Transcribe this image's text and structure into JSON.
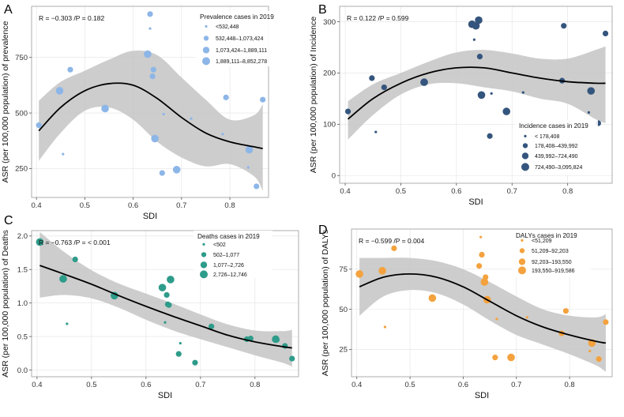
{
  "chart_data": [
    {
      "type": "scatter",
      "panel_label": "A",
      "xlabel": "SDI",
      "ylabel": "ASR (per 100,000 population) of prevalence",
      "xlim": [
        0.39,
        0.88
      ],
      "ylim": [
        120,
        980
      ],
      "xticks": [
        0.4,
        0.5,
        0.6,
        0.7,
        0.8
      ],
      "yticks": [
        250,
        500,
        750
      ],
      "x_tick_labels": [
        "0.4",
        "0.5",
        "0.6",
        "0.7",
        "0.8"
      ],
      "y_tick_labels": [
        "250",
        "500",
        "750"
      ],
      "color": "#8DB6E8",
      "stat_text": "R = −0.303 /P = 0.182",
      "legend_title": "Prevalence cases in 2019",
      "legend_entries": [
        "<532,448",
        "532,448–1,073,424",
        "1,073,424–1,889,111",
        "1,889,111–8,852,278"
      ],
      "points": [
        {
          "x": 0.405,
          "y": 445,
          "size": 2
        },
        {
          "x": 0.448,
          "y": 600,
          "size": 3
        },
        {
          "x": 0.455,
          "y": 315,
          "size": 1
        },
        {
          "x": 0.47,
          "y": 695,
          "size": 2
        },
        {
          "x": 0.542,
          "y": 520,
          "size": 3
        },
        {
          "x": 0.63,
          "y": 765,
          "size": 3
        },
        {
          "x": 0.635,
          "y": 945,
          "size": 2
        },
        {
          "x": 0.635,
          "y": 880,
          "size": 1
        },
        {
          "x": 0.64,
          "y": 665,
          "size": 2
        },
        {
          "x": 0.642,
          "y": 695,
          "size": 2
        },
        {
          "x": 0.645,
          "y": 385,
          "size": 3
        },
        {
          "x": 0.66,
          "y": 230,
          "size": 2
        },
        {
          "x": 0.663,
          "y": 495,
          "size": 1
        },
        {
          "x": 0.69,
          "y": 245,
          "size": 3
        },
        {
          "x": 0.72,
          "y": 475,
          "size": 1
        },
        {
          "x": 0.785,
          "y": 405,
          "size": 1
        },
        {
          "x": 0.792,
          "y": 570,
          "size": 2
        },
        {
          "x": 0.838,
          "y": 255,
          "size": 1
        },
        {
          "x": 0.84,
          "y": 335,
          "size": 3
        },
        {
          "x": 0.855,
          "y": 170,
          "size": 2
        },
        {
          "x": 0.868,
          "y": 560,
          "size": 2
        }
      ],
      "fit": {
        "x": [
          0.405,
          0.45,
          0.5,
          0.55,
          0.6,
          0.65,
          0.7,
          0.75,
          0.8,
          0.85,
          0.868
        ],
        "y": [
          420,
          525,
          600,
          632,
          625,
          565,
          480,
          410,
          370,
          348,
          340
        ]
      },
      "band_upper": [
        555,
        640,
        690,
        740,
        780,
        760,
        660,
        560,
        470,
        490,
        540
      ],
      "band_lower": [
        285,
        410,
        510,
        525,
        470,
        370,
        300,
        260,
        270,
        215,
        150
      ]
    },
    {
      "type": "scatter",
      "panel_label": "B",
      "xlabel": "SDI",
      "ylabel": "ASR (per 100,000 population) of Incidence",
      "xlim": [
        0.39,
        0.88
      ],
      "ylim": [
        -15,
        330
      ],
      "xticks": [
        0.4,
        0.5,
        0.6,
        0.7,
        0.8
      ],
      "yticks": [
        0,
        100,
        200,
        300
      ],
      "x_tick_labels": [
        "0.4",
        "0.5",
        "0.6",
        "0.7",
        "0.8"
      ],
      "y_tick_labels": [
        "0",
        "100",
        "200",
        "300"
      ],
      "color": "#34557D",
      "stat_text": "R = 0.122 /P = 0.599",
      "legend_title": "Incidence cases in 2019",
      "legend_entries": [
        "< 178,408",
        "178,408–439,992",
        "439,992–724,490",
        "724,490–3,095,824"
      ],
      "points": [
        {
          "x": 0.405,
          "y": 125,
          "size": 2
        },
        {
          "x": 0.448,
          "y": 190,
          "size": 2
        },
        {
          "x": 0.455,
          "y": 85,
          "size": 1
        },
        {
          "x": 0.47,
          "y": 172,
          "size": 2
        },
        {
          "x": 0.542,
          "y": 182,
          "size": 3
        },
        {
          "x": 0.628,
          "y": 295,
          "size": 3
        },
        {
          "x": 0.632,
          "y": 265,
          "size": 1
        },
        {
          "x": 0.635,
          "y": 292,
          "size": 3
        },
        {
          "x": 0.64,
          "y": 303,
          "size": 3
        },
        {
          "x": 0.642,
          "y": 232,
          "size": 2
        },
        {
          "x": 0.645,
          "y": 157,
          "size": 3
        },
        {
          "x": 0.66,
          "y": 77,
          "size": 2
        },
        {
          "x": 0.663,
          "y": 160,
          "size": 1
        },
        {
          "x": 0.69,
          "y": 125,
          "size": 3
        },
        {
          "x": 0.72,
          "y": 162,
          "size": 1
        },
        {
          "x": 0.79,
          "y": 185,
          "size": 2
        },
        {
          "x": 0.793,
          "y": 292,
          "size": 2
        },
        {
          "x": 0.838,
          "y": 123,
          "size": 1
        },
        {
          "x": 0.842,
          "y": 165,
          "size": 3
        },
        {
          "x": 0.855,
          "y": 102,
          "size": 2
        },
        {
          "x": 0.868,
          "y": 277,
          "size": 2
        }
      ],
      "fit": {
        "x": [
          0.405,
          0.45,
          0.5,
          0.55,
          0.6,
          0.65,
          0.7,
          0.75,
          0.8,
          0.85,
          0.868
        ],
        "y": [
          110,
          150,
          180,
          200,
          210,
          210,
          200,
          190,
          183,
          180,
          180
        ]
      },
      "band_upper": [
        145,
        178,
        200,
        222,
        240,
        245,
        238,
        228,
        228,
        245,
        252
      ],
      "band_lower": [
        70,
        118,
        158,
        178,
        180,
        172,
        164,
        150,
        140,
        110,
        102
      ]
    },
    {
      "type": "scatter",
      "panel_label": "C",
      "xlabel": "SDI",
      "ylabel": "ASR (per 100,000 population) of Deaths",
      "xlim": [
        0.39,
        0.88
      ],
      "ylim": [
        -0.1,
        2.08
      ],
      "xticks": [
        0.4,
        0.5,
        0.6,
        0.7,
        0.8
      ],
      "yticks": [
        0.0,
        0.5,
        1.0,
        1.5,
        2.0
      ],
      "x_tick_labels": [
        "0.4",
        "0.5",
        "0.6",
        "0.7",
        "0.8"
      ],
      "y_tick_labels": [
        "0.0",
        "0.5",
        "1.0",
        "1.5",
        "2.0"
      ],
      "color": "#2E9C8A",
      "stat_text": "R = −0.763 /P = < 0.001",
      "legend_title": "Deaths cases in 2019",
      "legend_entries": [
        "<502",
        "502–1,077",
        "1,077–2,726",
        "2,726–12,746"
      ],
      "points": [
        {
          "x": 0.405,
          "y": 1.91,
          "size": 3
        },
        {
          "x": 0.448,
          "y": 1.36,
          "size": 3
        },
        {
          "x": 0.455,
          "y": 0.69,
          "size": 1
        },
        {
          "x": 0.47,
          "y": 1.65,
          "size": 2
        },
        {
          "x": 0.542,
          "y": 1.11,
          "size": 3
        },
        {
          "x": 0.63,
          "y": 1.23,
          "size": 3
        },
        {
          "x": 0.635,
          "y": 0.71,
          "size": 1
        },
        {
          "x": 0.638,
          "y": 1.12,
          "size": 2
        },
        {
          "x": 0.64,
          "y": 0.98,
          "size": 2
        },
        {
          "x": 0.642,
          "y": 0.97,
          "size": 2
        },
        {
          "x": 0.645,
          "y": 1.35,
          "size": 3
        },
        {
          "x": 0.66,
          "y": 0.24,
          "size": 2
        },
        {
          "x": 0.663,
          "y": 0.4,
          "size": 1
        },
        {
          "x": 0.69,
          "y": 0.11,
          "size": 2
        },
        {
          "x": 0.72,
          "y": 0.65,
          "size": 2
        },
        {
          "x": 0.785,
          "y": 0.46,
          "size": 2
        },
        {
          "x": 0.792,
          "y": 0.47,
          "size": 2
        },
        {
          "x": 0.838,
          "y": 0.46,
          "size": 3
        },
        {
          "x": 0.84,
          "y": 0.45,
          "size": 2
        },
        {
          "x": 0.855,
          "y": 0.36,
          "size": 2
        },
        {
          "x": 0.868,
          "y": 0.17,
          "size": 2
        }
      ],
      "fit": {
        "x": [
          0.405,
          0.45,
          0.5,
          0.55,
          0.6,
          0.65,
          0.7,
          0.75,
          0.8,
          0.85,
          0.868
        ],
        "y": [
          1.56,
          1.43,
          1.28,
          1.11,
          0.95,
          0.8,
          0.66,
          0.52,
          0.42,
          0.35,
          0.33
        ]
      },
      "band_upper": [
        2.06,
        1.76,
        1.49,
        1.29,
        1.14,
        0.99,
        0.83,
        0.68,
        0.59,
        0.58,
        0.6
      ],
      "band_lower": [
        1.08,
        1.12,
        1.07,
        0.93,
        0.75,
        0.59,
        0.46,
        0.34,
        0.22,
        0.11,
        0.05
      ]
    },
    {
      "type": "scatter",
      "panel_label": "D",
      "xlabel": "SDI",
      "ylabel": "ASR (per 100,000 population) of DALYs",
      "xlim": [
        0.39,
        0.88
      ],
      "ylim": [
        8,
        100
      ],
      "xticks": [
        0.4,
        0.5,
        0.6,
        0.7,
        0.8
      ],
      "yticks": [
        25,
        50,
        75
      ],
      "x_tick_labels": [
        "0.4",
        "0.5",
        "0.6",
        "0.7",
        "0.8"
      ],
      "y_tick_labels": [
        "25",
        "50",
        "75"
      ],
      "color": "#F4A23E",
      "stat_text": "R = −0.599 /P = 0.004",
      "legend_title": "DALYs cases in 2019",
      "legend_entries": [
        "<51,209",
        "51,209–92,203",
        "92,203–193,550",
        "193,550–919,586"
      ],
      "points": [
        {
          "x": 0.405,
          "y": 72,
          "size": 3
        },
        {
          "x": 0.448,
          "y": 74,
          "size": 3
        },
        {
          "x": 0.453,
          "y": 39,
          "size": 1
        },
        {
          "x": 0.47,
          "y": 88,
          "size": 2
        },
        {
          "x": 0.542,
          "y": 57,
          "size": 3
        },
        {
          "x": 0.63,
          "y": 77,
          "size": 2
        },
        {
          "x": 0.633,
          "y": 95,
          "size": 1
        },
        {
          "x": 0.635,
          "y": 84,
          "size": 2
        },
        {
          "x": 0.64,
          "y": 67,
          "size": 3
        },
        {
          "x": 0.642,
          "y": 70,
          "size": 2
        },
        {
          "x": 0.645,
          "y": 56,
          "size": 3
        },
        {
          "x": 0.66,
          "y": 20,
          "size": 2
        },
        {
          "x": 0.663,
          "y": 44,
          "size": 1
        },
        {
          "x": 0.69,
          "y": 20,
          "size": 3
        },
        {
          "x": 0.72,
          "y": 45,
          "size": 1
        },
        {
          "x": 0.785,
          "y": 35,
          "size": 2
        },
        {
          "x": 0.793,
          "y": 49,
          "size": 2
        },
        {
          "x": 0.838,
          "y": 24,
          "size": 1
        },
        {
          "x": 0.842,
          "y": 29,
          "size": 3
        },
        {
          "x": 0.855,
          "y": 19,
          "size": 2
        },
        {
          "x": 0.868,
          "y": 42,
          "size": 2
        }
      ],
      "fit": {
        "x": [
          0.405,
          0.45,
          0.5,
          0.55,
          0.6,
          0.65,
          0.7,
          0.75,
          0.8,
          0.85,
          0.868
        ],
        "y": [
          64,
          70,
          72,
          70,
          64,
          55,
          46,
          39,
          34,
          30,
          29
        ]
      },
      "band_upper": [
        82,
        82,
        82,
        80,
        75,
        67,
        58,
        50,
        46,
        45,
        47
      ],
      "band_lower": [
        46,
        58,
        62,
        60,
        53,
        43,
        34,
        28,
        22,
        15,
        11
      ]
    }
  ]
}
